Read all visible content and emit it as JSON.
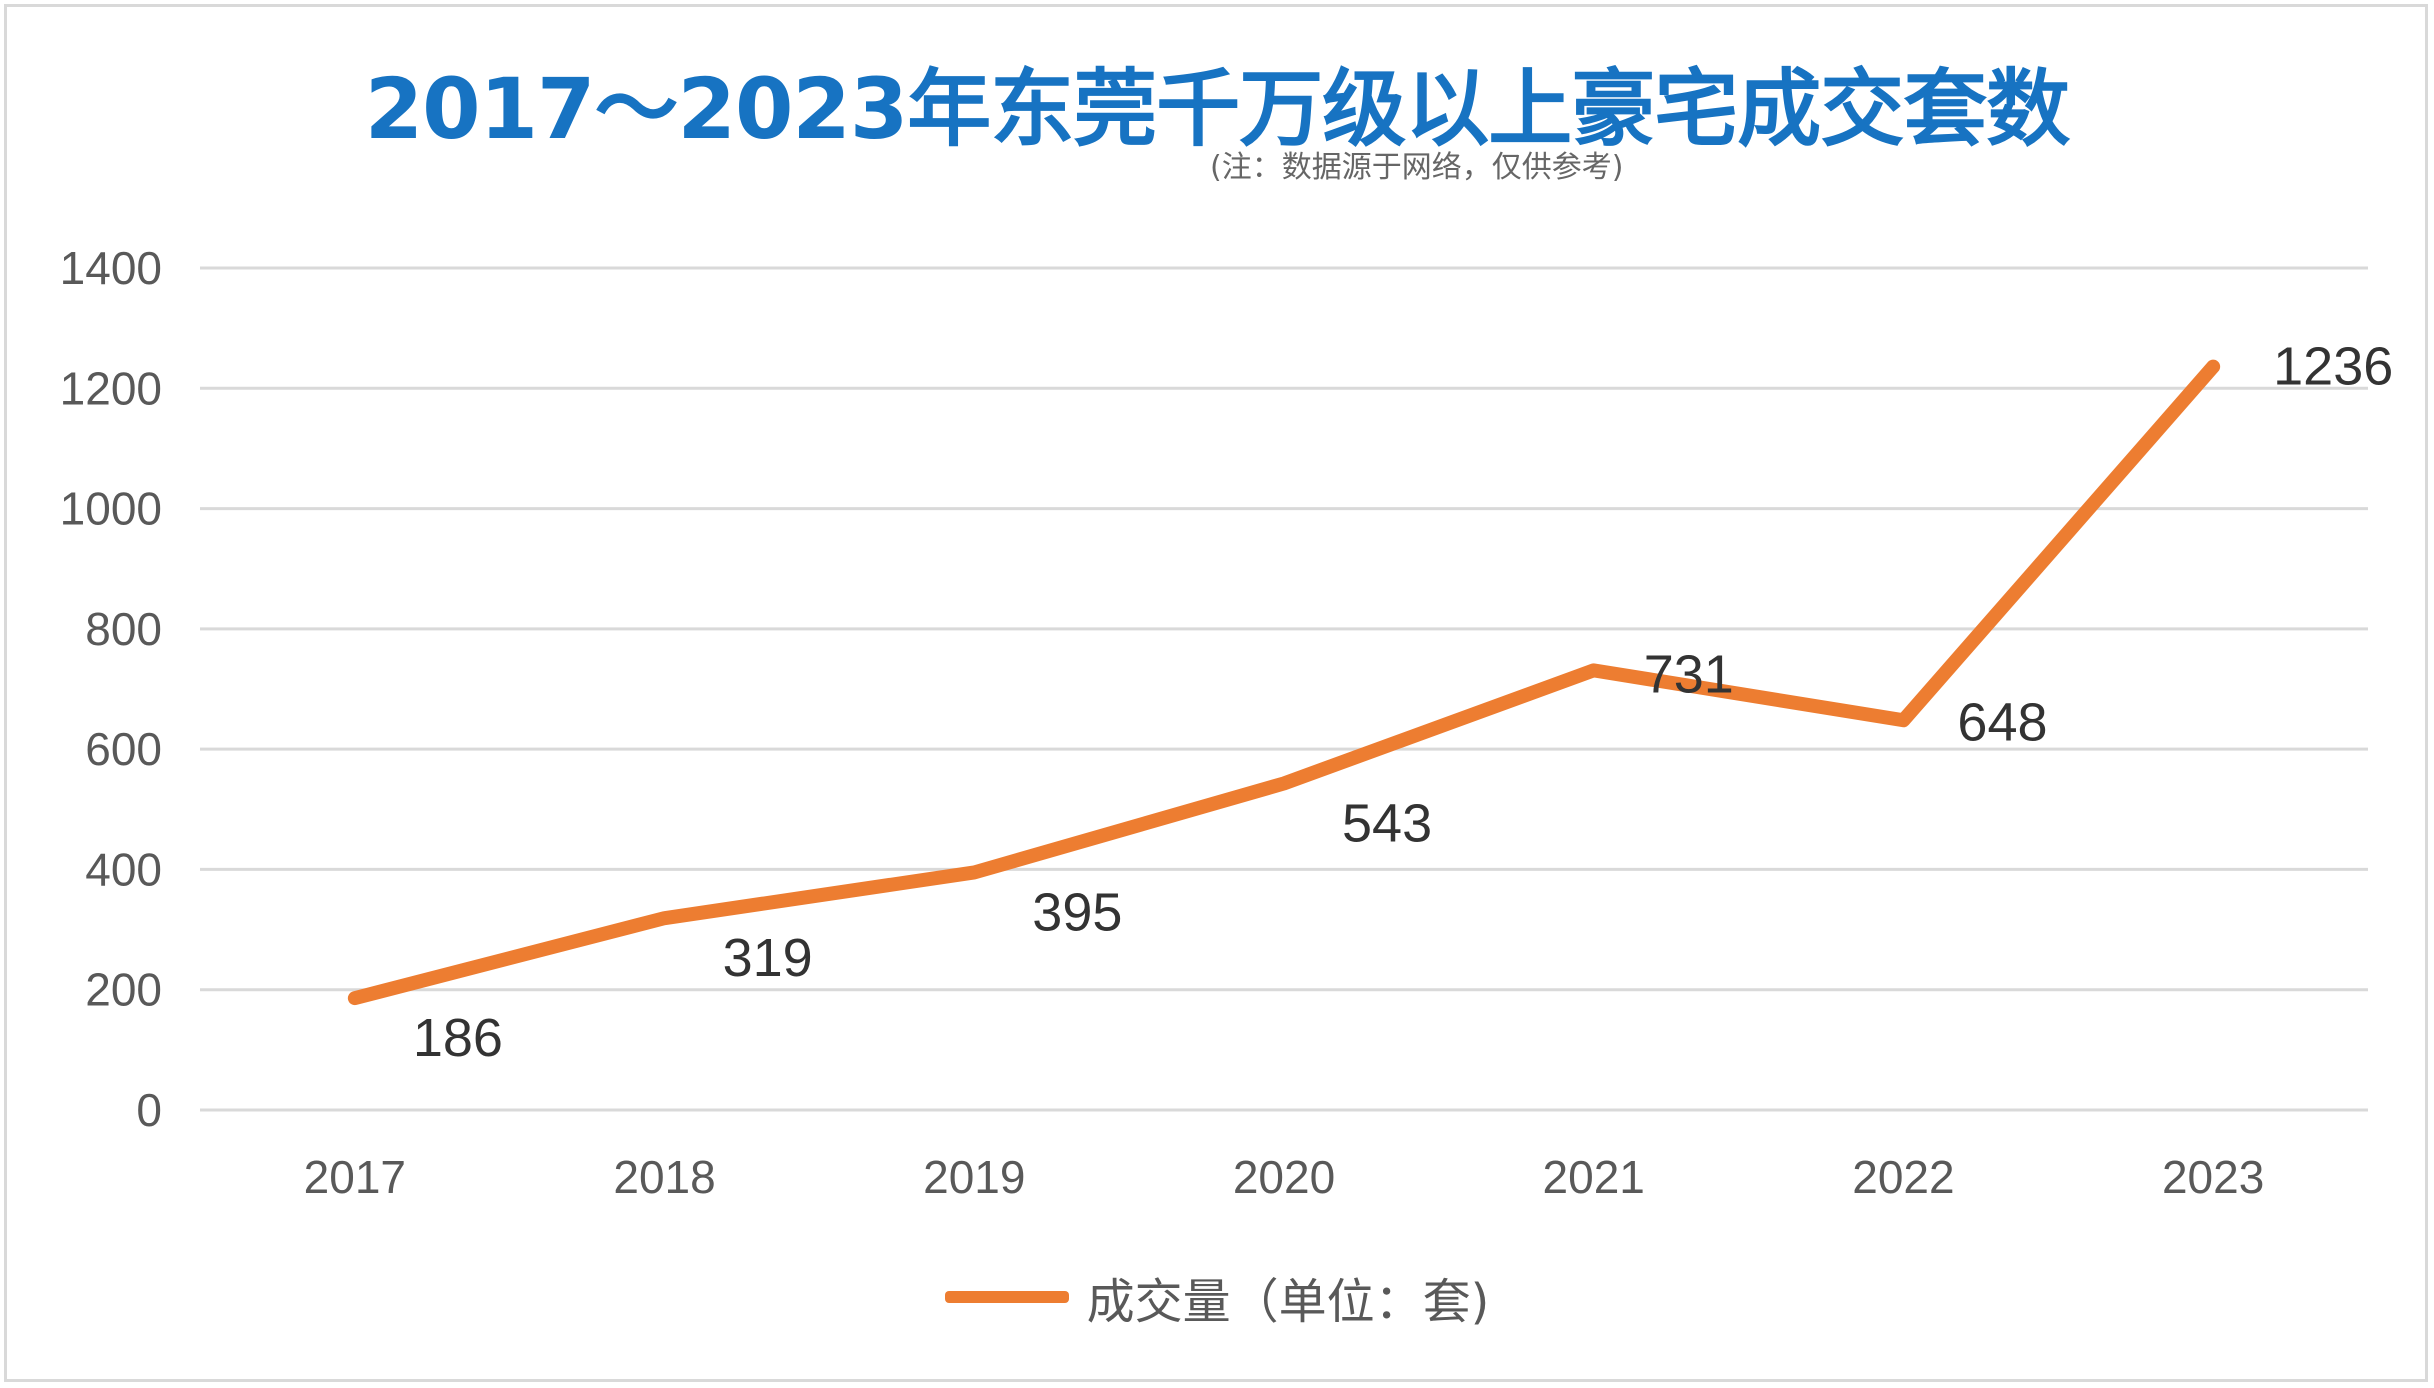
{
  "chart_data": {
    "type": "line",
    "title": "2017～2023年东莞千万级以上豪宅成交套数",
    "subtitle": "(注：数据源于网络，仅供参考)",
    "categories": [
      "2017",
      "2018",
      "2019",
      "2020",
      "2021",
      "2022",
      "2023"
    ],
    "series": [
      {
        "name": "成交量（单位：套)",
        "values": [
          186,
          319,
          395,
          543,
          731,
          648,
          1236
        ],
        "color": "#ed7d31"
      }
    ],
    "ylim": [
      0,
      1400
    ],
    "yticks": [
      "0",
      "200",
      "400",
      "600",
      "800",
      "1000",
      "1200",
      "1400"
    ],
    "data_labels": [
      "186",
      "319",
      "395",
      "543",
      "731",
      "648",
      "1236"
    ],
    "grid": true,
    "legend": "bottom",
    "title_color": "#1773c2",
    "grid_color": "#d9d9d9"
  }
}
